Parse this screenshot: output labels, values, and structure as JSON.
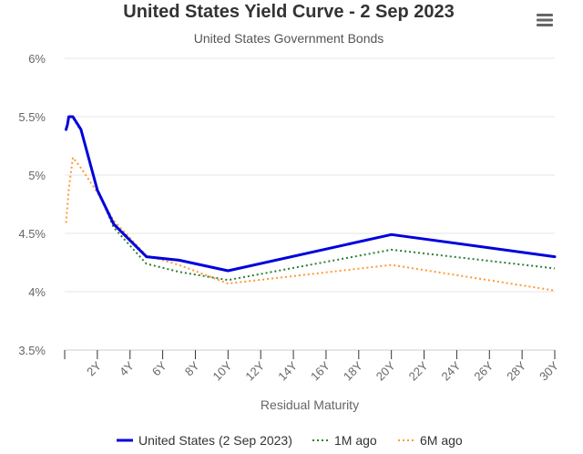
{
  "title": "United States Yield Curve - 2 Sep 2023",
  "subtitle": "United States Government Bonds",
  "menu_icon": "hamburger-menu-icon",
  "colors": {
    "current": "#0000dd",
    "one_month": "#2e7d32",
    "six_month": "#ff9933",
    "grid": "#e6e6e6",
    "axis": "#333333",
    "text": "#666666"
  },
  "chart_data": {
    "type": "line",
    "title": "United States Yield Curve - 2 Sep 2023",
    "subtitle": "United States Government Bonds",
    "xlabel": "Residual Maturity",
    "ylabel": "",
    "xlim": [
      0,
      30
    ],
    "ylim": [
      3.5,
      6
    ],
    "x_ticks": [
      0,
      2,
      4,
      6,
      8,
      10,
      12,
      14,
      16,
      18,
      20,
      22,
      24,
      26,
      28,
      30
    ],
    "x_tick_labels": [
      "",
      "2Y",
      "4Y",
      "6Y",
      "8Y",
      "10Y",
      "12Y",
      "14Y",
      "16Y",
      "18Y",
      "20Y",
      "22Y",
      "24Y",
      "26Y",
      "28Y",
      "30Y"
    ],
    "y_ticks": [
      3.5,
      4,
      4.5,
      5,
      5.5,
      6
    ],
    "y_tick_labels": [
      "3.5%",
      "4%",
      "4.5%",
      "5%",
      "5.5%",
      "6%"
    ],
    "grid": true,
    "legend_position": "bottom",
    "series": [
      {
        "name": "United States (2 Sep 2023)",
        "style": "solid",
        "color": "#0000dd",
        "x": [
          0.083,
          0.167,
          0.25,
          0.5,
          1,
          2,
          3,
          5,
          7,
          10,
          20,
          30
        ],
        "y": [
          5.39,
          5.43,
          5.5,
          5.5,
          5.39,
          4.87,
          4.58,
          4.3,
          4.27,
          4.18,
          4.49,
          4.3
        ]
      },
      {
        "name": "1M ago",
        "style": "dotted",
        "color": "#2e7d32",
        "x": [
          0.083,
          0.167,
          0.25,
          0.5,
          1,
          2,
          3,
          5,
          7,
          10,
          20,
          30
        ],
        "y": [
          5.39,
          5.44,
          5.5,
          5.49,
          5.38,
          4.88,
          4.55,
          4.24,
          4.17,
          4.1,
          4.36,
          4.2
        ]
      },
      {
        "name": "6M ago",
        "style": "dotted",
        "color": "#ff9933",
        "x": [
          0.083,
          0.25,
          0.5,
          1,
          2,
          3,
          5,
          7,
          10,
          20,
          30
        ],
        "y": [
          4.59,
          4.88,
          5.15,
          5.06,
          4.85,
          4.61,
          4.31,
          4.23,
          4.07,
          4.23,
          4.01
        ]
      }
    ]
  }
}
